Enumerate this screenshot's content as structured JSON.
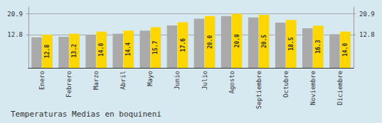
{
  "chart_data": {
    "type": "bar",
    "title": "Temperaturas Medias en boquineni",
    "categories": [
      "Enero",
      "Febrero",
      "Marzo",
      "Abril",
      "Mayo",
      "Junio",
      "Julio",
      "Agosto",
      "Septiembre",
      "Octubre",
      "Noviembre",
      "Diciembre"
    ],
    "series": [
      {
        "color": "#AAAAAA",
        "values": [
          11.8,
          12.0,
          12.8,
          13.2,
          14.4,
          16.4,
          19.0,
          20.0,
          19.5,
          17.5,
          15.3,
          13.0
        ]
      },
      {
        "color": "#FFD700",
        "values": [
          12.8,
          13.2,
          14.0,
          14.4,
          15.7,
          17.6,
          20.0,
          20.9,
          20.5,
          18.5,
          16.3,
          14.0
        ],
        "value_labels": [
          "12.8",
          "13.2",
          "14.0",
          "14.4",
          "15.7",
          "17.6",
          "20.0",
          "20.9",
          "20.5",
          "18.5",
          "16.3",
          "14.0"
        ],
        "data_labels": true
      }
    ],
    "ylim": [
      0,
      23.5
    ],
    "yticks": [
      12.8,
      20.9
    ],
    "grid": true
  }
}
